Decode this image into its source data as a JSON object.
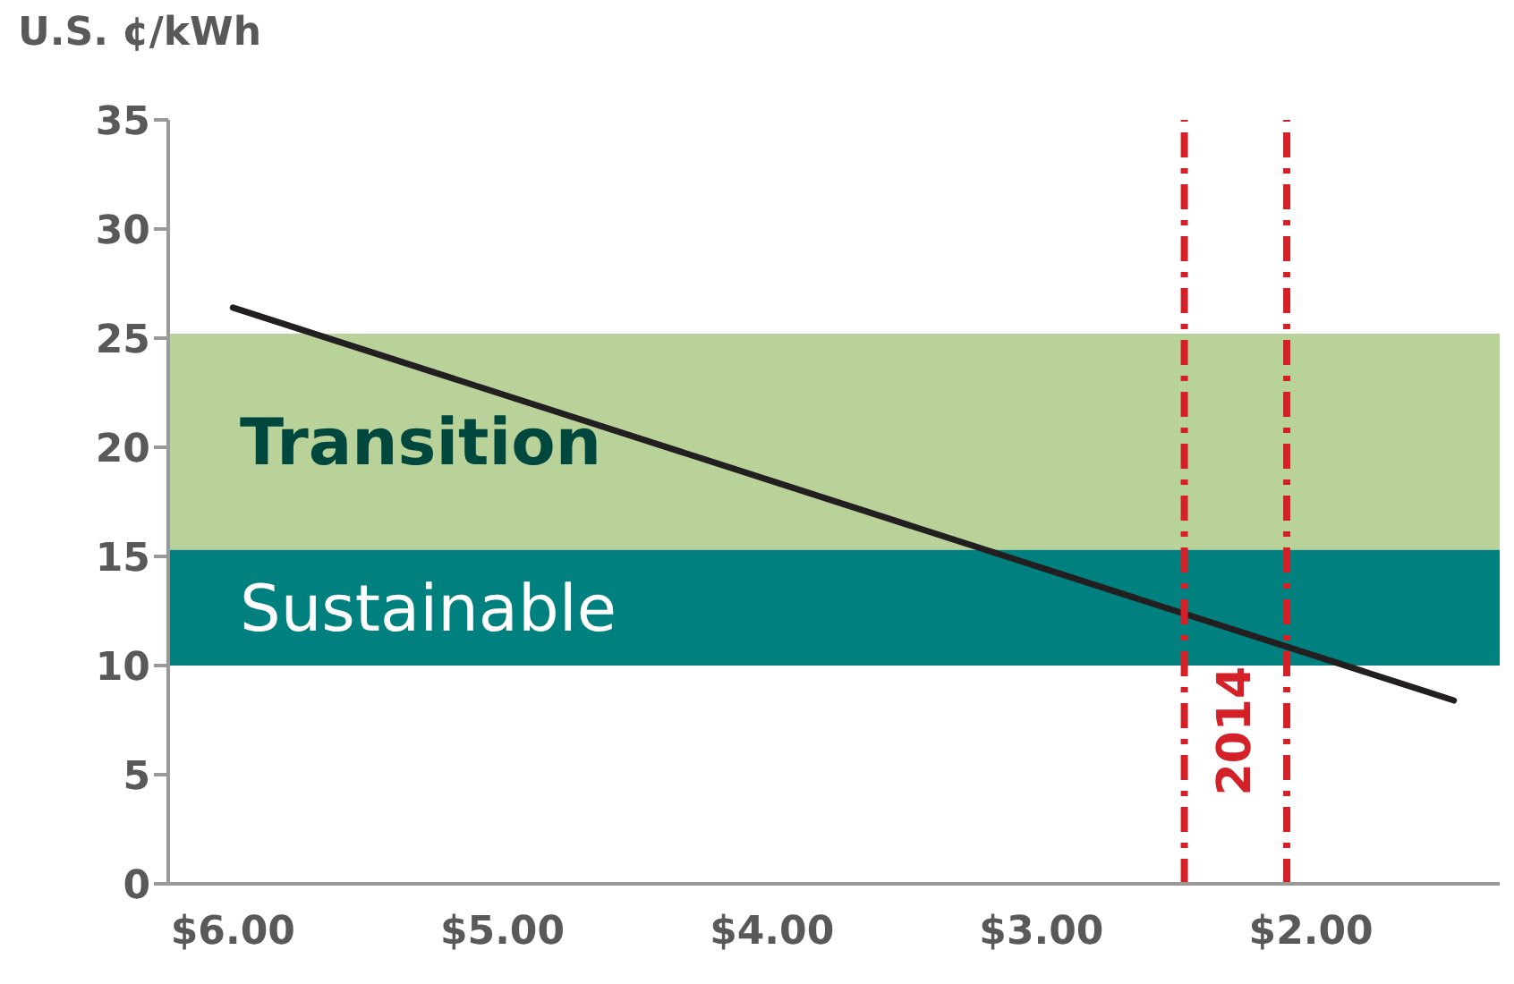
{
  "chart_data": {
    "type": "line",
    "ylabel": "U.S. ¢/kWh",
    "x": [
      6.0,
      1.47
    ],
    "series": [
      {
        "color": "#231f20",
        "values": [
          26.4,
          8.4
        ]
      }
    ],
    "xlim": [
      6.24,
      1.3
    ],
    "xticks": [
      {
        "value": 6,
        "label": "$6.00"
      },
      {
        "value": 5,
        "label": "$5.00"
      },
      {
        "value": 4,
        "label": "$4.00"
      },
      {
        "value": 3,
        "label": "$3.00"
      },
      {
        "value": 2,
        "label": "$2.00"
      }
    ],
    "ylim": [
      0,
      35
    ],
    "yticks": [
      0,
      5,
      10,
      15,
      20,
      25,
      30,
      35
    ],
    "bands": [
      {
        "axis": "y",
        "from": 15.3,
        "to": 25.2,
        "label": "Transition",
        "color": "#b9d29a"
      },
      {
        "axis": "y",
        "from": 10,
        "to": 15.3,
        "label": "Sustainable",
        "color": "#00807f"
      }
    ],
    "ref_lines": [
      {
        "axis": "x",
        "value": 2.47,
        "color": "#d42027",
        "line_style": "dashed"
      },
      {
        "axis": "x",
        "value": 2.09,
        "color": "#d42027",
        "line_style": "dashed"
      }
    ],
    "annotations": [
      "2014"
    ],
    "grid": false,
    "legend": false,
    "marker": "none",
    "line_style": "solid"
  }
}
